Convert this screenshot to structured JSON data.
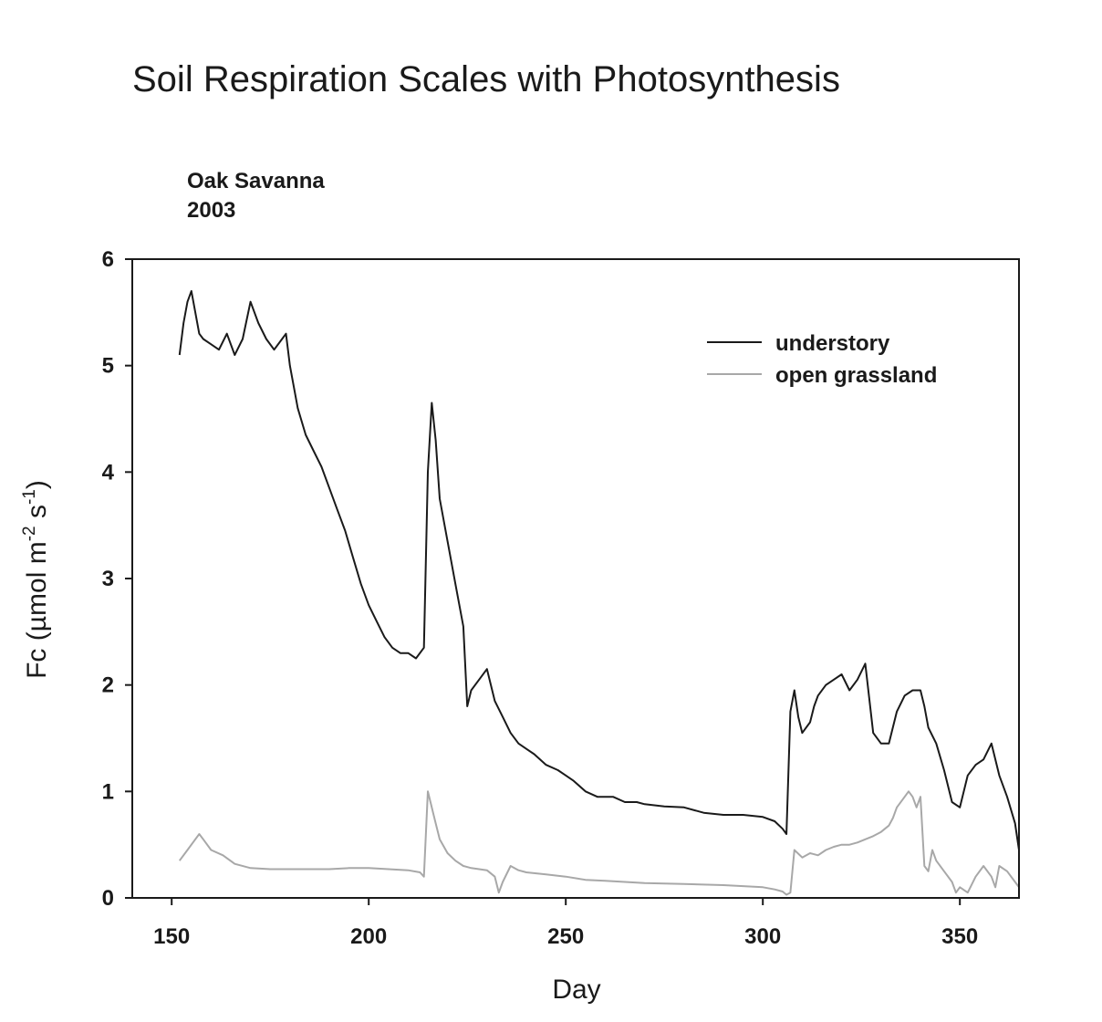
{
  "chart_data": {
    "type": "line",
    "title": "Soil Respiration Scales with Photosynthesis",
    "subtitle_lines": [
      "Oak Savanna",
      "2003"
    ],
    "xlabel": "Day",
    "ylabel": {
      "prefix": "Fc (",
      "mu": "µ",
      "unit_a": "mol m",
      "sup_a": "-2",
      "unit_b": " s",
      "sup_b": "-1",
      "suffix": ")"
    },
    "xlim": [
      140,
      365
    ],
    "ylim": [
      0,
      6
    ],
    "x_ticks": [
      150,
      200,
      250,
      300,
      350
    ],
    "y_ticks": [
      0,
      1,
      2,
      3,
      4,
      5,
      6
    ],
    "grid": false,
    "legend_position": "top-right",
    "series": [
      {
        "name": "understory",
        "color": "#1a1a1a",
        "x": [
          152,
          153,
          154,
          155,
          156,
          157,
          158,
          160,
          162,
          164,
          166,
          168,
          170,
          172,
          174,
          176,
          178,
          179,
          180,
          182,
          184,
          186,
          188,
          190,
          192,
          194,
          196,
          198,
          200,
          202,
          204,
          206,
          208,
          210,
          212,
          214,
          215,
          216,
          217,
          218,
          220,
          222,
          224,
          225,
          226,
          228,
          230,
          232,
          234,
          236,
          238,
          240,
          242,
          245,
          248,
          250,
          252,
          255,
          258,
          260,
          262,
          265,
          268,
          270,
          275,
          280,
          285,
          290,
          295,
          300,
          303,
          305,
          306,
          307,
          308,
          309,
          310,
          312,
          313,
          314,
          316,
          318,
          320,
          322,
          324,
          326,
          328,
          330,
          332,
          334,
          336,
          338,
          340,
          341,
          342,
          344,
          346,
          348,
          350,
          352,
          354,
          356,
          358,
          360,
          362,
          364,
          365
        ],
        "y": [
          5.1,
          5.4,
          5.6,
          5.7,
          5.5,
          5.3,
          5.25,
          5.2,
          5.15,
          5.3,
          5.1,
          5.25,
          5.6,
          5.4,
          5.25,
          5.15,
          5.25,
          5.3,
          5.0,
          4.6,
          4.35,
          4.2,
          4.05,
          3.85,
          3.65,
          3.45,
          3.2,
          2.95,
          2.75,
          2.6,
          2.45,
          2.35,
          2.3,
          2.3,
          2.25,
          2.35,
          4.0,
          4.65,
          4.3,
          3.75,
          3.35,
          2.95,
          2.55,
          1.8,
          1.95,
          2.05,
          2.15,
          1.85,
          1.7,
          1.55,
          1.45,
          1.4,
          1.35,
          1.25,
          1.2,
          1.15,
          1.1,
          1.0,
          0.95,
          0.95,
          0.95,
          0.9,
          0.9,
          0.88,
          0.86,
          0.85,
          0.8,
          0.78,
          0.78,
          0.76,
          0.72,
          0.65,
          0.6,
          1.75,
          1.95,
          1.7,
          1.55,
          1.65,
          1.8,
          1.9,
          2.0,
          2.05,
          2.1,
          1.95,
          2.05,
          2.2,
          1.55,
          1.45,
          1.45,
          1.75,
          1.9,
          1.95,
          1.95,
          1.8,
          1.6,
          1.45,
          1.2,
          0.9,
          0.85,
          1.15,
          1.25,
          1.3,
          1.45,
          1.15,
          0.95,
          0.7,
          0.45
        ]
      },
      {
        "name": "open grassland",
        "color": "#a8a8a8",
        "x": [
          152,
          154,
          156,
          157,
          158,
          160,
          163,
          166,
          170,
          175,
          180,
          185,
          190,
          195,
          200,
          205,
          210,
          213,
          214,
          215,
          216,
          217,
          218,
          220,
          222,
          224,
          226,
          228,
          230,
          232,
          233,
          234,
          236,
          238,
          240,
          245,
          250,
          255,
          260,
          265,
          270,
          280,
          290,
          300,
          303,
          305,
          306,
          307,
          308,
          310,
          312,
          314,
          316,
          318,
          320,
          322,
          324,
          326,
          328,
          330,
          332,
          333,
          334,
          336,
          337,
          338,
          339,
          340,
          341,
          342,
          343,
          344,
          346,
          348,
          349,
          350,
          352,
          354,
          356,
          358,
          359,
          360,
          362,
          364,
          365
        ],
        "y": [
          0.35,
          0.45,
          0.55,
          0.6,
          0.55,
          0.45,
          0.4,
          0.32,
          0.28,
          0.27,
          0.27,
          0.27,
          0.27,
          0.28,
          0.28,
          0.27,
          0.26,
          0.24,
          0.2,
          1.0,
          0.85,
          0.7,
          0.55,
          0.42,
          0.35,
          0.3,
          0.28,
          0.27,
          0.26,
          0.2,
          0.05,
          0.15,
          0.3,
          0.26,
          0.24,
          0.22,
          0.2,
          0.17,
          0.16,
          0.15,
          0.14,
          0.13,
          0.12,
          0.1,
          0.08,
          0.06,
          0.03,
          0.05,
          0.45,
          0.38,
          0.42,
          0.4,
          0.45,
          0.48,
          0.5,
          0.5,
          0.52,
          0.55,
          0.58,
          0.62,
          0.68,
          0.75,
          0.85,
          0.95,
          1.0,
          0.95,
          0.85,
          0.95,
          0.3,
          0.25,
          0.45,
          0.35,
          0.25,
          0.15,
          0.05,
          0.1,
          0.05,
          0.2,
          0.3,
          0.2,
          0.1,
          0.3,
          0.25,
          0.15,
          0.1
        ]
      }
    ]
  }
}
